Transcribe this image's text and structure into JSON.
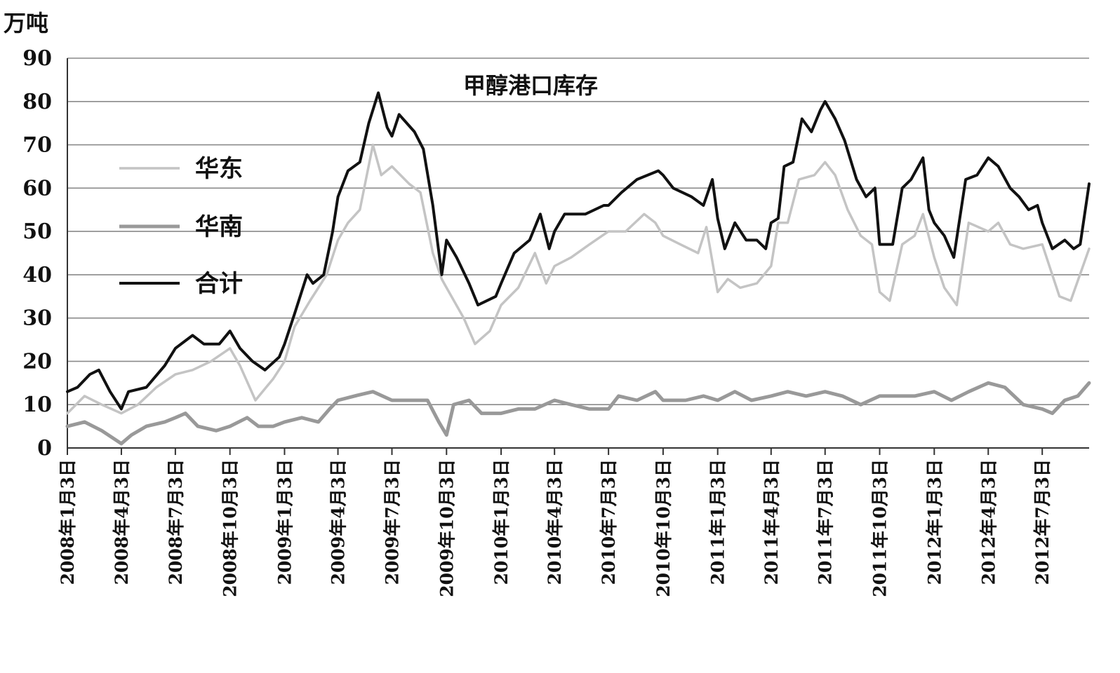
{
  "chart_data": {
    "type": "line",
    "title": "甲醇港口库存",
    "ylabel": "万吨",
    "xlabel": "",
    "ylim": [
      0,
      90
    ],
    "yticks": [
      0,
      10,
      20,
      30,
      40,
      50,
      60,
      70,
      80,
      90
    ],
    "grid": true,
    "legend_position": "left",
    "xlim": [
      "2008-01-03",
      "2012-09-20"
    ],
    "x_ticks": [
      {
        "date": "2008-01-03",
        "label": "2008年1月3日"
      },
      {
        "date": "2008-04-03",
        "label": "2008年4月3日"
      },
      {
        "date": "2008-07-03",
        "label": "2008年7月3日"
      },
      {
        "date": "2008-10-03",
        "label": "2008年10月3日"
      },
      {
        "date": "2009-01-03",
        "label": "2009年1月3日"
      },
      {
        "date": "2009-04-03",
        "label": "2009年4月3日"
      },
      {
        "date": "2009-07-03",
        "label": "2009年7月3日"
      },
      {
        "date": "2009-10-03",
        "label": "2009年10月3日"
      },
      {
        "date": "2010-01-03",
        "label": "2010年1月3日"
      },
      {
        "date": "2010-04-03",
        "label": "2010年4月3日"
      },
      {
        "date": "2010-07-03",
        "label": "2010年7月3日"
      },
      {
        "date": "2010-10-03",
        "label": "2010年10月3日"
      },
      {
        "date": "2011-01-03",
        "label": "2011年1月3日"
      },
      {
        "date": "2011-04-03",
        "label": "2011年4月3日"
      },
      {
        "date": "2011-07-03",
        "label": "2011年7月3日"
      },
      {
        "date": "2011-10-03",
        "label": "2011年10月3日"
      },
      {
        "date": "2012-01-03",
        "label": "2012年1月3日"
      },
      {
        "date": "2012-04-03",
        "label": "2012年4月3日"
      },
      {
        "date": "2012-07-03",
        "label": "2012年7月3日"
      }
    ],
    "series": [
      {
        "name": "华东",
        "color": "#c4c4c4",
        "points": [
          [
            "2008-01-03",
            8
          ],
          [
            "2008-02-01",
            12
          ],
          [
            "2008-03-01",
            10
          ],
          [
            "2008-04-03",
            8
          ],
          [
            "2008-05-01",
            10
          ],
          [
            "2008-06-01",
            14
          ],
          [
            "2008-07-03",
            17
          ],
          [
            "2008-08-01",
            18
          ],
          [
            "2008-09-01",
            20
          ],
          [
            "2008-10-03",
            23
          ],
          [
            "2008-10-20",
            19
          ],
          [
            "2008-11-15",
            11
          ],
          [
            "2008-12-15",
            16
          ],
          [
            "2009-01-03",
            20
          ],
          [
            "2009-01-20",
            28
          ],
          [
            "2009-02-15",
            34
          ],
          [
            "2009-03-15",
            40
          ],
          [
            "2009-04-03",
            48
          ],
          [
            "2009-04-20",
            52
          ],
          [
            "2009-05-10",
            55
          ],
          [
            "2009-06-01",
            70
          ],
          [
            "2009-06-15",
            63
          ],
          [
            "2009-07-03",
            65
          ],
          [
            "2009-08-01",
            61
          ],
          [
            "2009-08-20",
            59
          ],
          [
            "2009-09-10",
            45
          ],
          [
            "2009-09-25",
            39
          ],
          [
            "2009-10-03",
            37
          ],
          [
            "2009-11-01",
            30
          ],
          [
            "2009-11-20",
            24
          ],
          [
            "2009-12-15",
            27
          ],
          [
            "2010-01-03",
            33
          ],
          [
            "2010-02-01",
            37
          ],
          [
            "2010-03-01",
            45
          ],
          [
            "2010-03-20",
            38
          ],
          [
            "2010-04-03",
            42
          ],
          [
            "2010-05-01",
            44
          ],
          [
            "2010-06-01",
            47
          ],
          [
            "2010-07-03",
            50
          ],
          [
            "2010-08-01",
            50
          ],
          [
            "2010-09-01",
            54
          ],
          [
            "2010-09-20",
            52
          ],
          [
            "2010-10-03",
            49
          ],
          [
            "2010-11-01",
            47
          ],
          [
            "2010-12-01",
            45
          ],
          [
            "2010-12-15",
            51
          ],
          [
            "2011-01-03",
            36
          ],
          [
            "2011-01-20",
            39
          ],
          [
            "2011-02-10",
            37
          ],
          [
            "2011-03-10",
            38
          ],
          [
            "2011-04-03",
            42
          ],
          [
            "2011-04-15",
            52
          ],
          [
            "2011-05-01",
            52
          ],
          [
            "2011-05-20",
            62
          ],
          [
            "2011-06-15",
            63
          ],
          [
            "2011-07-03",
            66
          ],
          [
            "2011-07-20",
            63
          ],
          [
            "2011-08-10",
            55
          ],
          [
            "2011-09-01",
            49
          ],
          [
            "2011-09-20",
            47
          ],
          [
            "2011-10-03",
            36
          ],
          [
            "2011-10-20",
            34
          ],
          [
            "2011-11-10",
            47
          ],
          [
            "2011-12-01",
            49
          ],
          [
            "2011-12-15",
            54
          ],
          [
            "2012-01-03",
            44
          ],
          [
            "2012-01-20",
            37
          ],
          [
            "2012-02-10",
            33
          ],
          [
            "2012-03-01",
            52
          ],
          [
            "2012-04-03",
            50
          ],
          [
            "2012-04-20",
            52
          ],
          [
            "2012-05-10",
            47
          ],
          [
            "2012-06-01",
            46
          ],
          [
            "2012-07-03",
            47
          ],
          [
            "2012-08-01",
            35
          ],
          [
            "2012-08-20",
            34
          ],
          [
            "2012-09-20",
            46
          ]
        ]
      },
      {
        "name": "华南",
        "color": "#999999",
        "points": [
          [
            "2008-01-03",
            5
          ],
          [
            "2008-02-01",
            6
          ],
          [
            "2008-03-01",
            4
          ],
          [
            "2008-04-03",
            1
          ],
          [
            "2008-04-20",
            3
          ],
          [
            "2008-05-15",
            5
          ],
          [
            "2008-06-15",
            6
          ],
          [
            "2008-07-03",
            7
          ],
          [
            "2008-07-20",
            8
          ],
          [
            "2008-08-10",
            5
          ],
          [
            "2008-09-10",
            4
          ],
          [
            "2008-10-03",
            5
          ],
          [
            "2008-11-01",
            7
          ],
          [
            "2008-11-20",
            5
          ],
          [
            "2008-12-15",
            5
          ],
          [
            "2009-01-03",
            6
          ],
          [
            "2009-02-01",
            7
          ],
          [
            "2009-03-01",
            6
          ],
          [
            "2009-03-20",
            9
          ],
          [
            "2009-04-03",
            11
          ],
          [
            "2009-05-01",
            12
          ],
          [
            "2009-06-01",
            13
          ],
          [
            "2009-07-03",
            11
          ],
          [
            "2009-08-01",
            11
          ],
          [
            "2009-09-01",
            11
          ],
          [
            "2009-09-20",
            6
          ],
          [
            "2009-10-03",
            3
          ],
          [
            "2009-10-15",
            10
          ],
          [
            "2009-11-10",
            11
          ],
          [
            "2009-12-01",
            8
          ],
          [
            "2010-01-03",
            8
          ],
          [
            "2010-02-01",
            9
          ],
          [
            "2010-03-01",
            9
          ],
          [
            "2010-04-03",
            11
          ],
          [
            "2010-05-01",
            10
          ],
          [
            "2010-06-01",
            9
          ],
          [
            "2010-07-03",
            9
          ],
          [
            "2010-07-20",
            12
          ],
          [
            "2010-08-20",
            11
          ],
          [
            "2010-09-20",
            13
          ],
          [
            "2010-10-03",
            11
          ],
          [
            "2010-11-10",
            11
          ],
          [
            "2010-12-10",
            12
          ],
          [
            "2011-01-03",
            11
          ],
          [
            "2011-02-01",
            13
          ],
          [
            "2011-03-01",
            11
          ],
          [
            "2011-04-03",
            12
          ],
          [
            "2011-05-01",
            13
          ],
          [
            "2011-06-01",
            12
          ],
          [
            "2011-07-03",
            13
          ],
          [
            "2011-08-01",
            12
          ],
          [
            "2011-09-01",
            10
          ],
          [
            "2011-10-03",
            12
          ],
          [
            "2011-11-01",
            12
          ],
          [
            "2011-12-01",
            12
          ],
          [
            "2012-01-03",
            13
          ],
          [
            "2012-02-01",
            11
          ],
          [
            "2012-03-01",
            13
          ],
          [
            "2012-04-03",
            15
          ],
          [
            "2012-05-01",
            14
          ],
          [
            "2012-06-01",
            10
          ],
          [
            "2012-07-03",
            9
          ],
          [
            "2012-07-20",
            8
          ],
          [
            "2012-08-10",
            11
          ],
          [
            "2012-09-01",
            12
          ],
          [
            "2012-09-20",
            15
          ]
        ]
      },
      {
        "name": "合计",
        "color": "#111111",
        "points": [
          [
            "2008-01-03",
            13
          ],
          [
            "2008-01-20",
            14
          ],
          [
            "2008-02-10",
            17
          ],
          [
            "2008-02-25",
            18
          ],
          [
            "2008-03-15",
            13
          ],
          [
            "2008-04-03",
            9
          ],
          [
            "2008-04-15",
            13
          ],
          [
            "2008-05-15",
            14
          ],
          [
            "2008-06-15",
            19
          ],
          [
            "2008-07-03",
            23
          ],
          [
            "2008-08-01",
            26
          ],
          [
            "2008-08-20",
            24
          ],
          [
            "2008-09-15",
            24
          ],
          [
            "2008-10-03",
            27
          ],
          [
            "2008-10-20",
            23
          ],
          [
            "2008-11-10",
            20
          ],
          [
            "2008-12-01",
            18
          ],
          [
            "2008-12-25",
            21
          ],
          [
            "2009-01-03",
            24
          ],
          [
            "2009-01-20",
            31
          ],
          [
            "2009-02-10",
            40
          ],
          [
            "2009-02-20",
            38
          ],
          [
            "2009-03-10",
            40
          ],
          [
            "2009-03-25",
            50
          ],
          [
            "2009-04-03",
            58
          ],
          [
            "2009-04-20",
            64
          ],
          [
            "2009-05-10",
            66
          ],
          [
            "2009-05-25",
            75
          ],
          [
            "2009-06-10",
            82
          ],
          [
            "2009-06-25",
            74
          ],
          [
            "2009-07-03",
            72
          ],
          [
            "2009-07-15",
            77
          ],
          [
            "2009-08-10",
            73
          ],
          [
            "2009-08-25",
            69
          ],
          [
            "2009-09-10",
            56
          ],
          [
            "2009-09-25",
            40
          ],
          [
            "2009-10-03",
            48
          ],
          [
            "2009-10-20",
            44
          ],
          [
            "2009-11-10",
            38
          ],
          [
            "2009-11-25",
            33
          ],
          [
            "2009-12-25",
            35
          ],
          [
            "2010-01-03",
            38
          ],
          [
            "2010-01-25",
            45
          ],
          [
            "2010-02-20",
            48
          ],
          [
            "2010-03-10",
            54
          ],
          [
            "2010-03-25",
            46
          ],
          [
            "2010-04-03",
            50
          ],
          [
            "2010-04-20",
            54
          ],
          [
            "2010-05-25",
            54
          ],
          [
            "2010-06-25",
            56
          ],
          [
            "2010-07-03",
            56
          ],
          [
            "2010-07-25",
            59
          ],
          [
            "2010-08-20",
            62
          ],
          [
            "2010-09-25",
            64
          ],
          [
            "2010-10-03",
            63
          ],
          [
            "2010-10-20",
            60
          ],
          [
            "2010-11-20",
            58
          ],
          [
            "2010-12-10",
            56
          ],
          [
            "2010-12-25",
            62
          ],
          [
            "2011-01-03",
            53
          ],
          [
            "2011-01-15",
            46
          ],
          [
            "2011-02-01",
            52
          ],
          [
            "2011-02-20",
            48
          ],
          [
            "2011-03-10",
            48
          ],
          [
            "2011-03-25",
            46
          ],
          [
            "2011-04-03",
            52
          ],
          [
            "2011-04-15",
            53
          ],
          [
            "2011-04-25",
            65
          ],
          [
            "2011-05-10",
            66
          ],
          [
            "2011-05-25",
            76
          ],
          [
            "2011-06-10",
            73
          ],
          [
            "2011-06-25",
            78
          ],
          [
            "2011-07-03",
            80
          ],
          [
            "2011-07-20",
            76
          ],
          [
            "2011-08-05",
            71
          ],
          [
            "2011-08-25",
            62
          ],
          [
            "2011-09-10",
            58
          ],
          [
            "2011-09-25",
            60
          ],
          [
            "2011-10-03",
            47
          ],
          [
            "2011-10-25",
            47
          ],
          [
            "2011-11-10",
            60
          ],
          [
            "2011-11-25",
            62
          ],
          [
            "2011-12-15",
            67
          ],
          [
            "2011-12-25",
            55
          ],
          [
            "2012-01-03",
            52
          ],
          [
            "2012-01-20",
            49
          ],
          [
            "2012-02-05",
            44
          ],
          [
            "2012-02-25",
            62
          ],
          [
            "2012-03-15",
            63
          ],
          [
            "2012-04-03",
            67
          ],
          [
            "2012-04-20",
            65
          ],
          [
            "2012-05-10",
            60
          ],
          [
            "2012-05-25",
            58
          ],
          [
            "2012-06-10",
            55
          ],
          [
            "2012-06-25",
            56
          ],
          [
            "2012-07-03",
            52
          ],
          [
            "2012-07-20",
            46
          ],
          [
            "2012-08-10",
            48
          ],
          [
            "2012-08-25",
            46
          ],
          [
            "2012-09-05",
            47
          ],
          [
            "2012-09-20",
            61
          ]
        ]
      }
    ]
  }
}
